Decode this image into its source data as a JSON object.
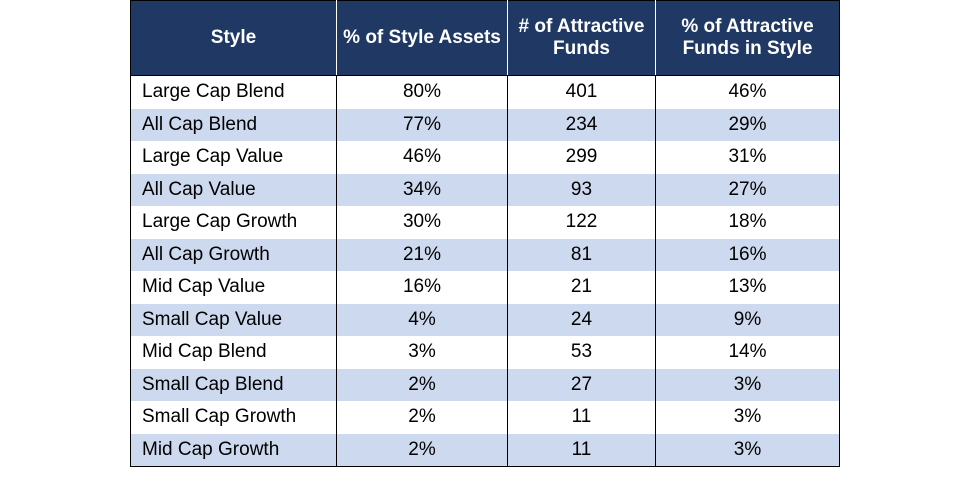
{
  "table": {
    "headers": [
      "Style",
      "% of Style Assets",
      "# of Attractive Funds",
      "% of Attractive Funds in Style"
    ],
    "rows": [
      [
        "Large Cap Blend",
        "80%",
        "401",
        "46%"
      ],
      [
        "All Cap Blend",
        "77%",
        "234",
        "29%"
      ],
      [
        "Large Cap Value",
        "46%",
        "299",
        "31%"
      ],
      [
        "All Cap Value",
        "34%",
        "93",
        "27%"
      ],
      [
        "Large Cap Growth",
        "30%",
        "122",
        "18%"
      ],
      [
        "All Cap Growth",
        "21%",
        "81",
        "16%"
      ],
      [
        "Mid Cap Value",
        "16%",
        "21",
        "13%"
      ],
      [
        "Small Cap Value",
        "4%",
        "24",
        "9%"
      ],
      [
        "Mid Cap Blend",
        "3%",
        "53",
        "14%"
      ],
      [
        "Small Cap Blend",
        "2%",
        "27",
        "3%"
      ],
      [
        "Small Cap Growth",
        "2%",
        "11",
        "3%"
      ],
      [
        "Mid Cap Growth",
        "2%",
        "11",
        "3%"
      ]
    ]
  },
  "colors": {
    "header_background": "#1f3864",
    "header_text": "#ffffff",
    "row_alt_background": "#cdd9ee",
    "row_background": "#ffffff"
  }
}
